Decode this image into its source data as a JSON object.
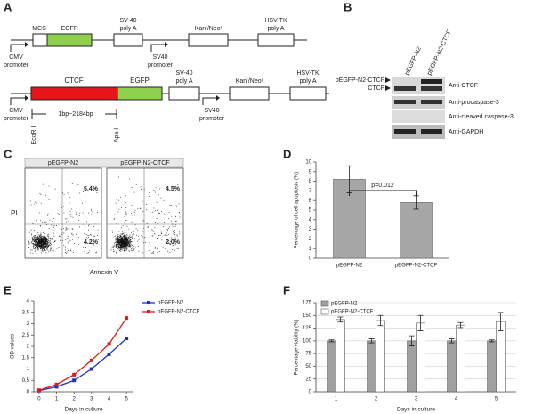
{
  "panel_labels": [
    "A",
    "B",
    "C",
    "D",
    "E",
    "F"
  ],
  "construct_1": {
    "MCS": "MCS",
    "EGFP": "EGFP",
    "polyA": [
      "SV-40",
      "poly A"
    ],
    "kan": "Kanʳ/Neoʳ",
    "hsv": [
      "HSV-TK",
      "poly A"
    ],
    "cmv": [
      "CMV",
      "promoter"
    ],
    "sv40": [
      "SV40",
      "promoter"
    ]
  },
  "construct_2": {
    "CTCF": "CTCF",
    "EGFP": "EGFP",
    "polyA": [
      "SV-40",
      "poly A"
    ],
    "kan": "Kanʳ/Neoʳ",
    "hsv": [
      "HSV-TK",
      "poly A"
    ],
    "cmv": [
      "CMV",
      "promoter"
    ],
    "sv40": [
      "SV40",
      "promoter"
    ],
    "span": "1bp~2184bp",
    "site1": "EcoR I",
    "site2": "Apa I"
  },
  "blot": {
    "lanes": [
      "pEGFP-N2",
      "pEGFP-N2-CTCF"
    ],
    "markers": [
      "pEGFP-N2-CTCF",
      "CTCF"
    ],
    "antibodies": [
      "Anti-CTCF",
      "Anti-procaspase-3",
      "Anti-cleaved caspase-3",
      "Anti-GAPDH"
    ]
  },
  "flow": {
    "ylabel": "PI",
    "xlabel": "Annexin Ⅴ",
    "plots": [
      {
        "name": "pEGFP-N2",
        "upper_right": "5.4%",
        "lower_right": "4.2%"
      },
      {
        "name": "pEGFP-N2-CTCF",
        "upper_right": "4.5%",
        "lower_right": "2.0%"
      }
    ]
  },
  "chart_data": [
    {
      "type": "bar",
      "ylabel": "Percentage of cell apoptosis (%)",
      "categories": [
        "pEGFP-N2",
        "pEGFP-N2-CTCF"
      ],
      "values": [
        8.2,
        5.8
      ],
      "errors": [
        1.4,
        0.7
      ],
      "color": "#a6a6a6",
      "ylim": [
        0,
        10
      ],
      "yticks": [
        0,
        1,
        2,
        3,
        4,
        5,
        6,
        7,
        8,
        9,
        10
      ],
      "annotation": "p=0.012",
      "grid": false
    },
    {
      "type": "line",
      "xlabel": "Days in culture",
      "ylabel": "OD values",
      "x": [
        0,
        1,
        2,
        3,
        4,
        5
      ],
      "xlim": [
        -0.3,
        5.4
      ],
      "xticks": [
        0,
        1,
        2,
        3,
        4,
        5
      ],
      "ylim": [
        0,
        4
      ],
      "yticks": [
        0,
        0.5,
        1,
        1.5,
        2,
        2.5,
        3,
        3.5,
        4
      ],
      "series": [
        {
          "name": "pEGFP-N2",
          "color": "#1f2fbf",
          "values": [
            0.05,
            0.22,
            0.5,
            1.0,
            1.65,
            2.35
          ]
        },
        {
          "name": "pEGFP-N2-CTCF",
          "color": "#e01818",
          "values": [
            0.07,
            0.32,
            0.75,
            1.38,
            2.1,
            3.25
          ]
        }
      ],
      "grid": false
    },
    {
      "type": "grouped_bar",
      "xlabel": "Days in culture",
      "ylabel": "Percentage viability (%)",
      "categories": [
        "1",
        "2",
        "3",
        "4",
        "5"
      ],
      "ylim": [
        0,
        175
      ],
      "yticks": [
        0,
        25,
        50,
        75,
        100,
        125,
        150,
        175
      ],
      "series": [
        {
          "name": "pEGFP-N2",
          "color": "#a0a0a0",
          "values": [
            100,
            100,
            100,
            100,
            100
          ],
          "errors": [
            2,
            4,
            10,
            4,
            2
          ]
        },
        {
          "name": "pEGFP-N2-CTCF",
          "color": "#ffffff",
          "values": [
            142,
            140,
            135,
            131,
            138
          ],
          "errors": [
            5,
            10,
            15,
            5,
            18
          ]
        }
      ],
      "grid": true
    }
  ]
}
